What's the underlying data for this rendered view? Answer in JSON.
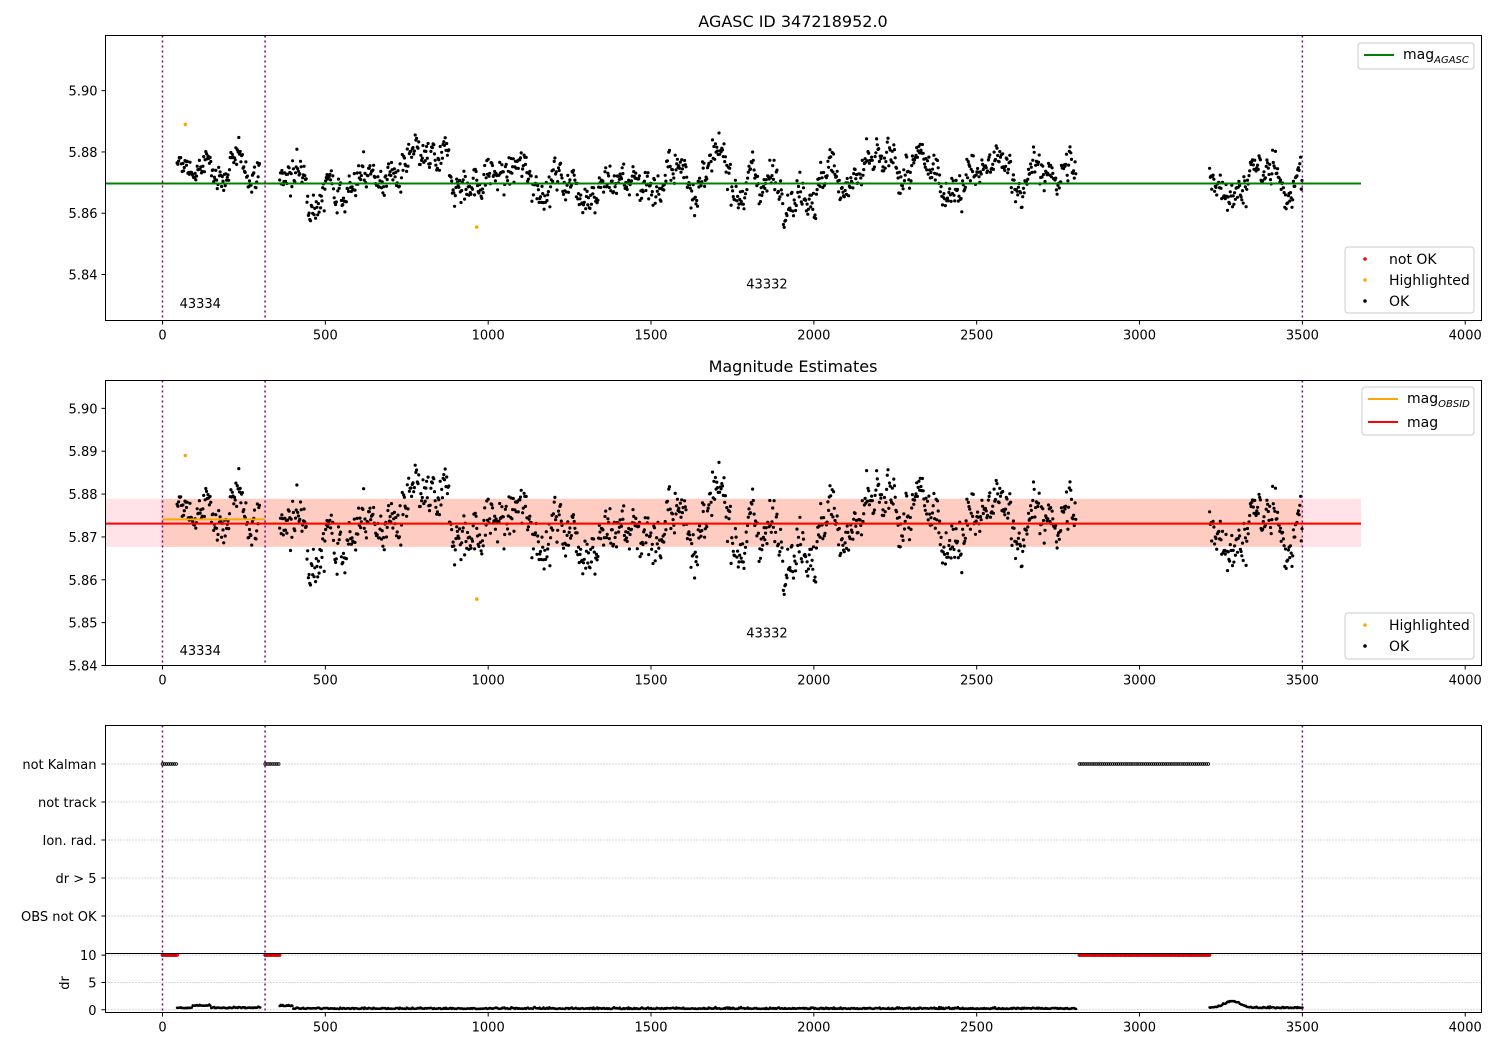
{
  "chart_data": [
    {
      "type": "scatter",
      "title": "AGASC ID 347218952.0",
      "xlabel": "",
      "ylabel": "",
      "xlim": [
        -175,
        4050
      ],
      "ylim": [
        5.825,
        5.918
      ],
      "xticks": [
        0,
        500,
        1000,
        1500,
        2000,
        2500,
        3000,
        3500,
        4000
      ],
      "yticks": [
        5.84,
        5.86,
        5.88,
        5.9
      ],
      "ytick_labels": [
        "5.84",
        "5.86",
        "5.88",
        "5.90"
      ],
      "mag_agasc": 5.8697,
      "obsid_boundaries": [
        0,
        315,
        3500
      ],
      "obsid_labels": [
        {
          "text": "43334",
          "x": 160,
          "y": 5.829
        },
        {
          "text": "43332",
          "x": 1900,
          "y": 5.8355
        }
      ],
      "legend_top": [
        {
          "label": "mag",
          "sub": "AGASC",
          "color": "#008000"
        }
      ],
      "legend_bottom": [
        {
          "label": "not OK",
          "color": "#ff0000"
        },
        {
          "label": "Highlighted",
          "color": "#ffa500"
        },
        {
          "label": "OK",
          "color": "#000000"
        }
      ],
      "highlighted_points": [
        {
          "x": 70,
          "y": 5.889
        },
        {
          "x": 965,
          "y": 5.8555
        }
      ],
      "ok_segments": [
        {
          "x": [
            45,
            300
          ],
          "level": 5.874,
          "spread": 0.0036
        },
        {
          "x": [
            360,
            2805
          ],
          "level": 5.872,
          "spread": 0.0048
        },
        {
          "x": [
            3215,
            3500
          ],
          "level": 5.871,
          "spread": 0.0045
        }
      ],
      "grid": false,
      "legend_placement": [
        "upper right",
        "lower right"
      ]
    },
    {
      "type": "scatter",
      "title": "Magnitude Estimates",
      "xlabel": "",
      "ylabel": "",
      "xlim": [
        -175,
        4050
      ],
      "ylim": [
        5.84,
        5.9065
      ],
      "xticks": [
        0,
        500,
        1000,
        1500,
        2000,
        2500,
        3000,
        3500,
        4000
      ],
      "yticks": [
        5.84,
        5.85,
        5.86,
        5.87,
        5.88,
        5.89,
        5.9
      ],
      "ytick_labels": [
        "5.84",
        "5.85",
        "5.86",
        "5.87",
        "5.88",
        "5.89",
        "5.90"
      ],
      "mag": 5.8731,
      "mag_band": [
        5.8677,
        5.8789
      ],
      "mag_obsid": [
        {
          "x": [
            0,
            315
          ],
          "value": 5.8741
        },
        {
          "x": [
            315,
            3680
          ],
          "value": 5.8731
        }
      ],
      "obsid_boundaries": [
        0,
        315,
        3500
      ],
      "obsid_labels": [
        {
          "text": "43334",
          "x": 160,
          "y": 5.8425
        },
        {
          "text": "43332",
          "x": 1900,
          "y": 5.8465
        }
      ],
      "legend_top": [
        {
          "label": "mag",
          "sub": "OBSID",
          "color": "#ffa500"
        },
        {
          "label": "mag",
          "sub": "",
          "color": "#ff0000"
        }
      ],
      "legend_bottom": [
        {
          "label": "Highlighted",
          "color": "#ffa500"
        },
        {
          "label": "OK",
          "color": "#000000"
        }
      ],
      "highlighted_points": [
        {
          "x": 70,
          "y": 5.889
        },
        {
          "x": 965,
          "y": 5.8555
        }
      ],
      "grid": false,
      "legend_placement": [
        "upper right",
        "lower right"
      ]
    },
    {
      "type": "scatter",
      "title": "",
      "xlim": [
        -175,
        4050
      ],
      "xticks": [
        0,
        500,
        1000,
        1500,
        2000,
        2500,
        3000,
        3500,
        4000
      ],
      "flag_categories": [
        "not Kalman",
        "not track",
        "Ion. rad.",
        "dr > 5",
        "OBS not OK"
      ],
      "not_kalman_ranges": [
        [
          0,
          45
        ],
        [
          315,
          360
        ],
        [
          2815,
          3215
        ]
      ],
      "dr": {
        "ylabel": "dr",
        "yticks": [
          0,
          5,
          10
        ],
        "ytick_labels": [
          "0",
          "5",
          "10"
        ],
        "ylim": [
          -0.5,
          10.3
        ],
        "clipped_value": 10,
        "clipped_ranges": [
          [
            0,
            45
          ],
          [
            315,
            360
          ],
          [
            2815,
            3215
          ]
        ],
        "segments": [
          {
            "x": [
              45,
              300
            ],
            "baseline": 0.3
          },
          {
            "x": [
              360,
              2805
            ],
            "baseline": 0.15
          },
          {
            "x": [
              3215,
              3500
            ],
            "baseline": 0.3,
            "bump_center": 3285,
            "bump_height": 1.2
          }
        ]
      },
      "obsid_boundaries": [
        0,
        315,
        3500
      ],
      "grid": true
    }
  ]
}
